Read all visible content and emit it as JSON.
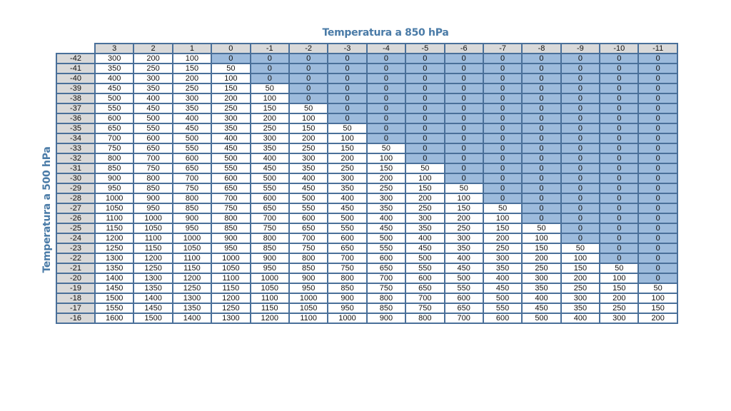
{
  "title": "Temperatura a 850 hPa",
  "ylabel": "Temperatura a 500 hPa",
  "colors": {
    "header_bg": "#d9d9d9",
    "zero_bg": "#9dbbdc",
    "positive_bg": "#ffffff",
    "border": "#4a709a",
    "title": "#4a7ba7"
  },
  "chart_data": {
    "type": "table",
    "title": "Temperatura a 850 hPa",
    "xlabel": "Temperatura a 850 hPa",
    "ylabel": "Temperatura a 500 hPa",
    "columns": [
      3,
      2,
      1,
      0,
      -1,
      -2,
      -3,
      -4,
      -5,
      -6,
      -7,
      -8,
      -9,
      -10,
      -11
    ],
    "rows": [
      -42,
      -41,
      -40,
      -39,
      -38,
      -37,
      -36,
      -35,
      -34,
      -33,
      -32,
      -31,
      -30,
      -29,
      -28,
      -27,
      -26,
      -25,
      -24,
      -23,
      -22,
      -21,
      -20,
      -19,
      -18,
      -17,
      -16
    ],
    "values": [
      [
        300,
        200,
        100,
        0,
        0,
        0,
        0,
        0,
        0,
        0,
        0,
        0,
        0,
        0,
        0
      ],
      [
        350,
        250,
        150,
        50,
        0,
        0,
        0,
        0,
        0,
        0,
        0,
        0,
        0,
        0,
        0
      ],
      [
        400,
        300,
        200,
        100,
        0,
        0,
        0,
        0,
        0,
        0,
        0,
        0,
        0,
        0,
        0
      ],
      [
        450,
        350,
        250,
        150,
        50,
        0,
        0,
        0,
        0,
        0,
        0,
        0,
        0,
        0,
        0
      ],
      [
        500,
        400,
        300,
        200,
        100,
        0,
        0,
        0,
        0,
        0,
        0,
        0,
        0,
        0,
        0
      ],
      [
        550,
        450,
        350,
        250,
        150,
        50,
        0,
        0,
        0,
        0,
        0,
        0,
        0,
        0,
        0
      ],
      [
        600,
        500,
        400,
        300,
        200,
        100,
        0,
        0,
        0,
        0,
        0,
        0,
        0,
        0,
        0
      ],
      [
        650,
        550,
        450,
        350,
        250,
        150,
        50,
        0,
        0,
        0,
        0,
        0,
        0,
        0,
        0
      ],
      [
        700,
        600,
        500,
        400,
        300,
        200,
        100,
        0,
        0,
        0,
        0,
        0,
        0,
        0,
        0
      ],
      [
        750,
        650,
        550,
        450,
        350,
        250,
        150,
        50,
        0,
        0,
        0,
        0,
        0,
        0,
        0
      ],
      [
        800,
        700,
        600,
        500,
        400,
        300,
        200,
        100,
        0,
        0,
        0,
        0,
        0,
        0,
        0
      ],
      [
        850,
        750,
        650,
        550,
        450,
        350,
        250,
        150,
        50,
        0,
        0,
        0,
        0,
        0,
        0
      ],
      [
        900,
        800,
        700,
        600,
        500,
        400,
        300,
        200,
        100,
        0,
        0,
        0,
        0,
        0,
        0
      ],
      [
        950,
        850,
        750,
        650,
        550,
        450,
        350,
        250,
        150,
        50,
        0,
        0,
        0,
        0,
        0
      ],
      [
        1000,
        900,
        800,
        700,
        600,
        500,
        400,
        300,
        200,
        100,
        0,
        0,
        0,
        0,
        0
      ],
      [
        1050,
        950,
        850,
        750,
        650,
        550,
        450,
        350,
        250,
        150,
        50,
        0,
        0,
        0,
        0
      ],
      [
        1100,
        1000,
        900,
        800,
        700,
        600,
        500,
        400,
        300,
        200,
        100,
        0,
        0,
        0,
        0
      ],
      [
        1150,
        1050,
        950,
        850,
        750,
        650,
        550,
        450,
        350,
        250,
        150,
        50,
        0,
        0,
        0
      ],
      [
        1200,
        1100,
        1000,
        900,
        800,
        700,
        600,
        500,
        400,
        300,
        200,
        100,
        0,
        0,
        0
      ],
      [
        1250,
        1150,
        1050,
        950,
        850,
        750,
        650,
        550,
        450,
        350,
        250,
        150,
        50,
        0,
        0
      ],
      [
        1300,
        1200,
        1100,
        1000,
        900,
        800,
        700,
        600,
        500,
        400,
        300,
        200,
        100,
        0,
        0
      ],
      [
        1350,
        1250,
        1150,
        1050,
        950,
        850,
        750,
        650,
        550,
        450,
        350,
        250,
        150,
        50,
        0
      ],
      [
        1400,
        1300,
        1200,
        1100,
        1000,
        900,
        800,
        700,
        600,
        500,
        400,
        300,
        200,
        100,
        0
      ],
      [
        1450,
        1350,
        1250,
        1150,
        1050,
        950,
        850,
        750,
        650,
        550,
        450,
        350,
        250,
        150,
        50
      ],
      [
        1500,
        1400,
        1300,
        1200,
        1100,
        1000,
        900,
        800,
        700,
        600,
        500,
        400,
        300,
        200,
        100
      ],
      [
        1550,
        1450,
        1350,
        1250,
        1150,
        1050,
        950,
        850,
        750,
        650,
        550,
        450,
        350,
        250,
        150
      ],
      [
        1600,
        1500,
        1400,
        1300,
        1200,
        1100,
        1000,
        900,
        800,
        700,
        600,
        500,
        400,
        300,
        200
      ]
    ],
    "highlight_rule": "cells equal to 0 shaded blue"
  }
}
